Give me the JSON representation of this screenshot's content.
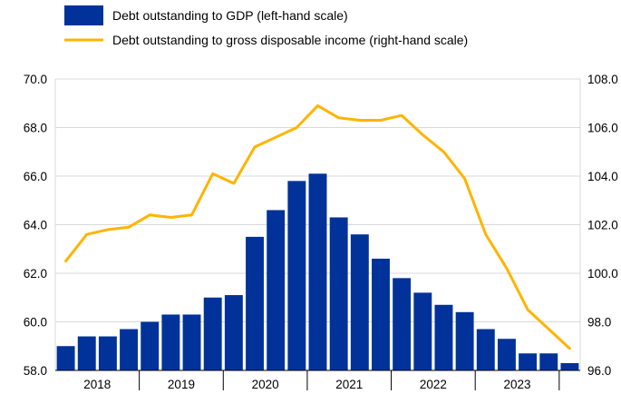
{
  "chart_data": {
    "type": "bar",
    "legend_position": "top-left",
    "grid": true,
    "x_tick_labels": [
      "2018",
      "2019",
      "2020",
      "2021",
      "2022",
      "2023"
    ],
    "quarters_per_year": 4,
    "series": [
      {
        "name": "Debt outstanding to GDP (left-hand scale)",
        "type": "bar",
        "axis": "left",
        "color": "#003299",
        "values": [
          59.0,
          59.4,
          59.4,
          59.7,
          60.0,
          60.3,
          60.3,
          61.0,
          61.1,
          63.5,
          64.6,
          65.8,
          66.1,
          64.3,
          63.6,
          62.6,
          61.8,
          61.2,
          60.7,
          60.4,
          59.7,
          59.3,
          58.7,
          58.7,
          58.3
        ]
      },
      {
        "name": "Debt outstanding to gross disposable income (right-hand scale)",
        "type": "line",
        "axis": "right",
        "color": "#FFB400",
        "values": [
          100.5,
          101.6,
          101.8,
          101.9,
          102.4,
          102.3,
          102.4,
          104.1,
          103.7,
          105.2,
          105.6,
          106.0,
          106.9,
          106.4,
          106.3,
          106.3,
          106.5,
          105.7,
          105.0,
          103.9,
          101.6,
          100.2,
          98.5,
          97.7,
          96.9
        ]
      }
    ],
    "y_left": {
      "min": 58.0,
      "max": 70.0,
      "step": 2.0,
      "tick_labels": [
        "58.0",
        "60.0",
        "62.0",
        "64.0",
        "66.0",
        "68.0",
        "70.0"
      ]
    },
    "y_right": {
      "min": 96.0,
      "max": 108.0,
      "step": 2.0,
      "tick_labels": [
        "96.0",
        "98.0",
        "100.0",
        "102.0",
        "104.0",
        "106.0",
        "108.0"
      ]
    },
    "gridline_color": "#d9d9d9"
  }
}
